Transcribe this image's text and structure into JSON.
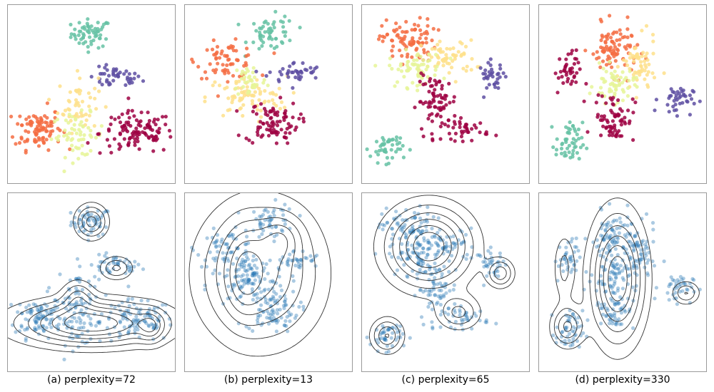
{
  "captions": [
    "(a) perplexity=72",
    "(b) perplexity=13",
    "(c) perplexity=65",
    "(d) perplexity=330"
  ],
  "chart_data": {
    "type": "scatter",
    "axes_ticks": false,
    "grid": false,
    "top_row_colors": [
      "#d53e4f",
      "#9e0142",
      "#f46d43",
      "#fee08b",
      "#e6f598",
      "#66c2a5",
      "#5e4fa2"
    ],
    "bottom_row_color": "#2c7bb6",
    "contour_color": "#333333",
    "panels": [
      {
        "caption": "(a) perplexity=72",
        "xlim": [
          0,
          100
        ],
        "ylim": [
          0,
          100
        ],
        "clusters": [
          {
            "cx": 50,
            "cy": 84,
            "sx": 6,
            "sy": 4,
            "n": 60,
            "color": "#66c2a5"
          },
          {
            "cx": 64,
            "cy": 59,
            "sx": 8,
            "sy": 3,
            "n": 45,
            "color": "#5e4fa2"
          },
          {
            "cx": 18,
            "cy": 31,
            "sx": 7,
            "sy": 6,
            "n": 95,
            "color": "#f46d43"
          },
          {
            "cx": 42,
            "cy": 45,
            "sx": 6,
            "sy": 8,
            "n": 50,
            "color": "#fee08b"
          },
          {
            "cx": 42,
            "cy": 27,
            "sx": 8,
            "sy": 6,
            "n": 60,
            "color": "#e6f598"
          },
          {
            "cx": 77,
            "cy": 28,
            "sx": 11,
            "sy": 6,
            "n": 110,
            "color": "#9e0142"
          }
        ],
        "kde": [
          {
            "cx": 50,
            "cy": 84,
            "sx": 6,
            "sy": 6,
            "w": 1
          },
          {
            "cx": 65,
            "cy": 58,
            "sx": 6,
            "sy": 4,
            "w": 0.7
          },
          {
            "cx": 50,
            "cy": 27,
            "sx": 28,
            "sy": 8,
            "w": 1.6
          },
          {
            "cx": 42,
            "cy": 42,
            "sx": 6,
            "sy": 6,
            "w": 0.6
          },
          {
            "cx": 86,
            "cy": 25,
            "sx": 5,
            "sy": 6,
            "w": 0.6
          }
        ]
      },
      {
        "caption": "(b) perplexity=13",
        "xlim": [
          0,
          100
        ],
        "ylim": [
          0,
          100
        ],
        "clusters": [
          {
            "cx": 52,
            "cy": 84,
            "sx": 7,
            "sy": 5,
            "n": 55,
            "color": "#66c2a5"
          },
          {
            "cx": 25,
            "cy": 69,
            "sx": 9,
            "sy": 5,
            "n": 65,
            "color": "#f46d43"
          },
          {
            "cx": 37,
            "cy": 48,
            "sx": 12,
            "sy": 6,
            "n": 80,
            "color": "#fee08b"
          },
          {
            "cx": 39,
            "cy": 58,
            "sx": 5,
            "sy": 5,
            "n": 35,
            "color": "#e6f598"
          },
          {
            "cx": 66,
            "cy": 62,
            "sx": 8,
            "sy": 3,
            "n": 40,
            "color": "#5e4fa2"
          },
          {
            "cx": 52,
            "cy": 34,
            "sx": 8,
            "sy": 6,
            "n": 85,
            "color": "#9e0142"
          }
        ],
        "kde": [
          {
            "cx": 45,
            "cy": 55,
            "sx": 22,
            "sy": 24,
            "w": 1.6
          },
          {
            "cx": 35,
            "cy": 55,
            "sx": 7,
            "sy": 16,
            "w": 0.6
          },
          {
            "cx": 58,
            "cy": 75,
            "sx": 8,
            "sy": 8,
            "w": 0.6
          }
        ]
      },
      {
        "caption": "(c) perplexity=65",
        "xlim": [
          0,
          100
        ],
        "ylim": [
          0,
          100
        ],
        "clusters": [
          {
            "cx": 28,
            "cy": 80,
            "sx": 8,
            "sy": 6,
            "n": 90,
            "color": "#f46d43"
          },
          {
            "cx": 52,
            "cy": 70,
            "sx": 8,
            "sy": 5,
            "n": 60,
            "color": "#fee08b"
          },
          {
            "cx": 32,
            "cy": 64,
            "sx": 8,
            "sy": 5,
            "n": 65,
            "color": "#e6f598"
          },
          {
            "cx": 45,
            "cy": 46,
            "sx": 6,
            "sy": 7,
            "n": 70,
            "color": "#9e0142"
          },
          {
            "cx": 62,
            "cy": 30,
            "sx": 7,
            "sy": 3,
            "n": 40,
            "color": "#9e0142"
          },
          {
            "cx": 78,
            "cy": 60,
            "sx": 4,
            "sy": 4,
            "n": 35,
            "color": "#5e4fa2"
          },
          {
            "cx": 15,
            "cy": 20,
            "sx": 5,
            "sy": 4,
            "n": 45,
            "color": "#66c2a5"
          }
        ],
        "kde": [
          {
            "cx": 40,
            "cy": 70,
            "sx": 16,
            "sy": 14,
            "w": 1.6
          },
          {
            "cx": 58,
            "cy": 33,
            "sx": 8,
            "sy": 6,
            "w": 0.7
          },
          {
            "cx": 83,
            "cy": 55,
            "sx": 5,
            "sy": 5,
            "w": 0.8
          },
          {
            "cx": 15,
            "cy": 20,
            "sx": 6,
            "sy": 6,
            "w": 0.9
          }
        ]
      },
      {
        "caption": "(d) perplexity=330",
        "xlim": [
          0,
          100
        ],
        "ylim": [
          0,
          100
        ],
        "clusters": [
          {
            "cx": 45,
            "cy": 75,
            "sx": 7,
            "sy": 7,
            "n": 90,
            "color": "#f46d43"
          },
          {
            "cx": 60,
            "cy": 65,
            "sx": 5,
            "sy": 8,
            "n": 60,
            "color": "#fee08b"
          },
          {
            "cx": 45,
            "cy": 55,
            "sx": 6,
            "sy": 5,
            "n": 60,
            "color": "#e6f598"
          },
          {
            "cx": 45,
            "cy": 37,
            "sx": 6,
            "sy": 7,
            "n": 70,
            "color": "#9e0142"
          },
          {
            "cx": 82,
            "cy": 47,
            "sx": 5,
            "sy": 4,
            "n": 40,
            "color": "#5e4fa2"
          },
          {
            "cx": 17,
            "cy": 62,
            "sx": 4,
            "sy": 6,
            "n": 40,
            "color": "#9e0142"
          },
          {
            "cx": 18,
            "cy": 22,
            "sx": 4,
            "sy": 6,
            "n": 50,
            "color": "#66c2a5"
          }
        ],
        "kde": [
          {
            "cx": 47,
            "cy": 52,
            "sx": 10,
            "sy": 22,
            "w": 1.7
          },
          {
            "cx": 17,
            "cy": 25,
            "sx": 6,
            "sy": 7,
            "w": 1.0
          },
          {
            "cx": 88,
            "cy": 44,
            "sx": 5,
            "sy": 4,
            "w": 0.7
          },
          {
            "cx": 15,
            "cy": 58,
            "sx": 4,
            "sy": 12,
            "w": 0.5
          }
        ]
      }
    ]
  }
}
